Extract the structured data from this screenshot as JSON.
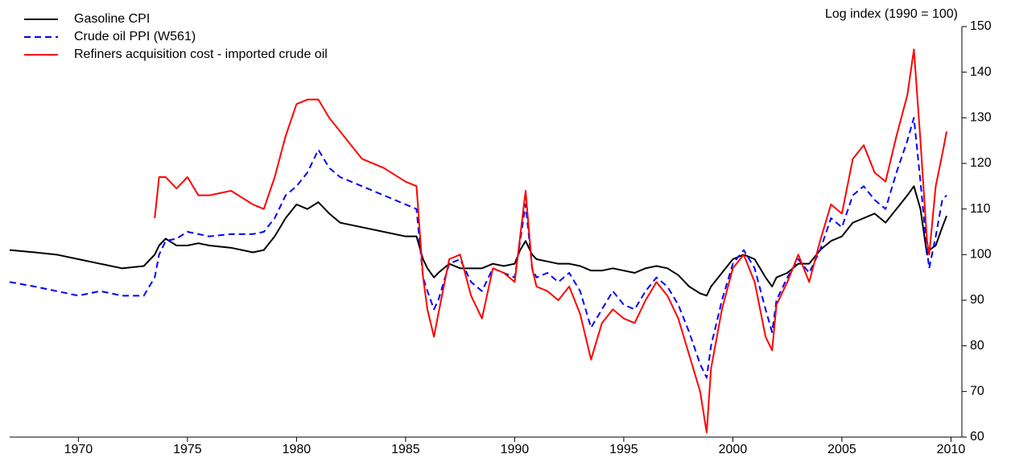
{
  "chart_data": {
    "type": "line",
    "y_label": "Log index (1990 = 100)",
    "xlim": [
      1966.85,
      2010.5
    ],
    "xticks": [
      1970,
      1975,
      1980,
      1985,
      1990,
      1995,
      2000,
      2005,
      2010
    ],
    "ylim": [
      60,
      150
    ],
    "yticks": [
      60,
      70,
      80,
      90,
      100,
      110,
      120,
      130,
      140,
      150
    ],
    "y_axis_side": "right",
    "legend": "upper left",
    "x": [
      1966.85,
      1968,
      1969,
      1970,
      1971,
      1972,
      1973,
      1973.5,
      1973.7,
      1974,
      1974.5,
      1975,
      1975.5,
      1976,
      1977,
      1978,
      1978.5,
      1979,
      1979.5,
      1980,
      1980.5,
      1981,
      1981.5,
      1982,
      1983,
      1984,
      1985,
      1985.5,
      1985.8,
      1986,
      1986.3,
      1986.5,
      1987,
      1987.5,
      1988,
      1988.5,
      1989,
      1989.5,
      1990,
      1990.25,
      1990.5,
      1990.8,
      1991,
      1991.5,
      1992,
      1992.5,
      1993,
      1993.5,
      1994,
      1994.5,
      1995,
      1995.5,
      1996,
      1996.5,
      1997,
      1997.5,
      1998,
      1998.5,
      1998.8,
      1999,
      1999.5,
      2000,
      2000.5,
      2001,
      2001.5,
      2001.8,
      2002,
      2002.5,
      2003,
      2003.5,
      2004,
      2004.5,
      2005,
      2005.5,
      2006,
      2006.5,
      2007,
      2007.5,
      2008,
      2008.3,
      2008.6,
      2008.9,
      2009,
      2009.3,
      2009.6,
      2009.8
    ],
    "series": [
      {
        "name": "Gasoline CPI",
        "color": "#000000",
        "line_style": "solid",
        "values": [
          101,
          100.5,
          100,
          99,
          98,
          97,
          97.5,
          100,
          102,
          103.5,
          102,
          102,
          102.5,
          102,
          101.5,
          100.5,
          101,
          104,
          108,
          111,
          110,
          111.5,
          109,
          107,
          106,
          105,
          104,
          104,
          99,
          97,
          95,
          96,
          98,
          97,
          97,
          97,
          98,
          97.5,
          98,
          101,
          103,
          100,
          99,
          98.5,
          98,
          98,
          97.5,
          96.5,
          96.5,
          97,
          96.5,
          96,
          97,
          97.5,
          97,
          95.5,
          93,
          91.5,
          91,
          93,
          96,
          99,
          100,
          99,
          95,
          93,
          95,
          96,
          98,
          98,
          101,
          103,
          104,
          107,
          108,
          109,
          107,
          110,
          113,
          115,
          110,
          100,
          101,
          102,
          106,
          108.5
        ]
      },
      {
        "name": "Crude oil PPI (W561)",
        "color": "#0000ff",
        "line_style": "dashed",
        "values": [
          94,
          93,
          92,
          91,
          92,
          91,
          91,
          95,
          100,
          103,
          103.5,
          105,
          104.5,
          104,
          104.5,
          104.5,
          105,
          108,
          113,
          115,
          118,
          123,
          119,
          117,
          115,
          113,
          111,
          110,
          95,
          92,
          88,
          90,
          98,
          99,
          94,
          92,
          97,
          96,
          95,
          103,
          111,
          97,
          95,
          96,
          94,
          96,
          92,
          84,
          88,
          92,
          89,
          88,
          92,
          95,
          93,
          89,
          83,
          76,
          73,
          80,
          90,
          98,
          101,
          97,
          88,
          83,
          90,
          95,
          99,
          96,
          101,
          108,
          106,
          113,
          115,
          112,
          110,
          118,
          125,
          130,
          116,
          101,
          97,
          104,
          112,
          113
        ]
      },
      {
        "name": "Refiners acquisition cost - imported crude oil",
        "color": "#ff0000",
        "line_style": "solid",
        "values": [
          null,
          null,
          null,
          null,
          null,
          null,
          null,
          108,
          117,
          117,
          114.5,
          117,
          113,
          113,
          114,
          111,
          110,
          117,
          126,
          133,
          134,
          134,
          130,
          127,
          121,
          119,
          116,
          115,
          95,
          88,
          82,
          87,
          99,
          100,
          91,
          86,
          97,
          96,
          94,
          104,
          114,
          97,
          93,
          92,
          90,
          93,
          87,
          77,
          85,
          88,
          86,
          85,
          90,
          94,
          91,
          86,
          78,
          70,
          61,
          75,
          88,
          97,
          100,
          94,
          82,
          79,
          89,
          94,
          100,
          94,
          103,
          111,
          109,
          121,
          124,
          118,
          116,
          126,
          135,
          145,
          125,
          103,
          100,
          115,
          122,
          127
        ]
      }
    ]
  }
}
